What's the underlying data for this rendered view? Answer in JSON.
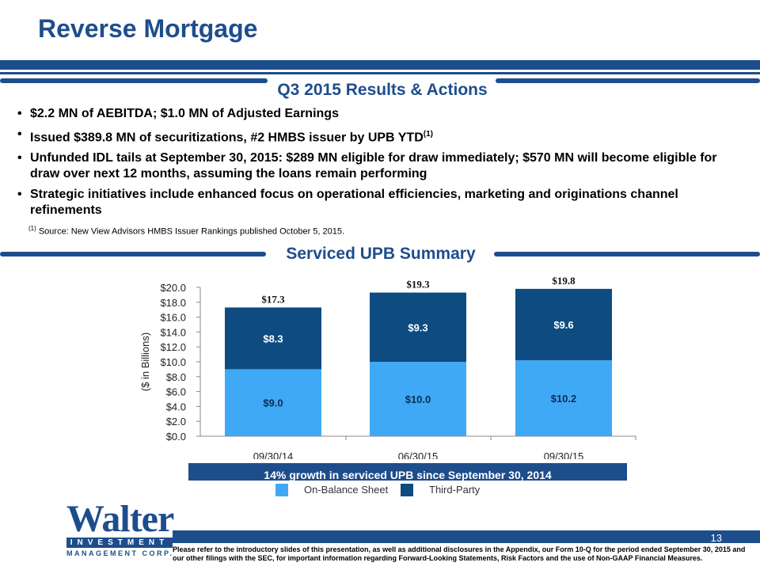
{
  "slide": {
    "title": "Reverse Mortgage",
    "page_number": "13"
  },
  "results": {
    "heading": "Q3 2015 Results & Actions",
    "bullets": [
      {
        "text": "$2.2 MN of AEBITDA; $1.0 MN of Adjusted Earnings"
      },
      {
        "text": "Issued $389.8 MN of securitizations, #2 HMBS issuer by UPB YTD",
        "sup": "(1)"
      },
      {
        "text": "Unfunded IDL tails at September 30, 2015: $289 MN eligible for draw immediately; $570 MN will become eligible for draw over next 12 months, assuming the loans remain performing"
      },
      {
        "text": "Strategic initiatives include enhanced focus on operational efficiencies, marketing and originations channel refinements"
      }
    ],
    "footnote_marker": "(1)",
    "footnote_text": "Source: New View Advisors HMBS Issuer Rankings published October 5, 2015."
  },
  "upb": {
    "heading": "Serviced UPB Summary",
    "growth_note": "14% growth in serviced UPB since September 30, 2014"
  },
  "chart_data": {
    "type": "bar",
    "stacked": true,
    "categories": [
      "09/30/14",
      "06/30/15",
      "09/30/15"
    ],
    "series": [
      {
        "name": "On-Balance Sheet",
        "values": [
          9.0,
          10.0,
          10.2
        ],
        "labels": [
          "$9.0",
          "$10.0",
          "$10.2"
        ],
        "color": "#3fa9f5"
      },
      {
        "name": "Third-Party",
        "values": [
          8.3,
          9.3,
          9.6
        ],
        "labels": [
          "$8.3",
          "$9.3",
          "$9.6"
        ],
        "color": "#0d4b80"
      }
    ],
    "totals": [
      17.3,
      19.3,
      19.8
    ],
    "total_labels": [
      "$17.3",
      "$19.3",
      "$19.8"
    ],
    "ylabel": "($ in Billions)",
    "ylim": [
      0,
      20
    ],
    "yticks": [
      0,
      2,
      4,
      6,
      8,
      10,
      12,
      14,
      16,
      18,
      20
    ],
    "ytick_labels": [
      "$0.0",
      "$2.0",
      "$4.0",
      "$6.0",
      "$8.0",
      "$10.0",
      "$12.0",
      "$14.0",
      "$16.0",
      "$18.0",
      "$20.0"
    ],
    "grid": false,
    "legend_position": "bottom"
  },
  "colors": {
    "brand_blue": "#1e4d8c",
    "on_balance": "#3fa9f5",
    "third_party": "#0d4b80"
  },
  "logo": {
    "word": "Walter",
    "line1": "INVESTMENT",
    "line2": "MANAGEMENT CORP."
  },
  "disclaimer": "Please refer to the introductory slides of this presentation, as well as additional disclosures in the Appendix, our Form 10-Q for the period ended September 30, 2015 and our other filings with the SEC, for important information regarding Forward-Looking Statements, Risk Factors and the use of Non-GAAP Financial Measures."
}
